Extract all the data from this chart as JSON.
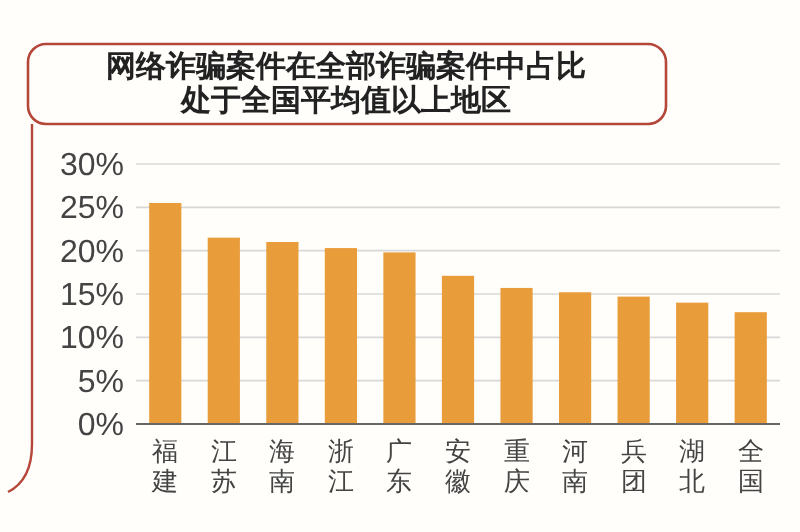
{
  "chart_data": {
    "type": "bar",
    "title": "网络诈骗案件在全部诈骗案件中占比",
    "subtitle": "处于全国平均值以上地区",
    "categories": [
      "福建",
      "江苏",
      "海南",
      "浙江",
      "广东",
      "安徽",
      "重庆",
      "河南",
      "兵团",
      "湖北",
      "全国"
    ],
    "values": [
      25.5,
      21.5,
      21.0,
      20.3,
      19.8,
      17.1,
      15.7,
      15.2,
      14.7,
      14.0,
      12.9
    ],
    "color": "#e89c3a",
    "ylim": [
      0,
      30
    ],
    "yticks": [
      {
        "value": 0,
        "label": "0%"
      },
      {
        "value": 5,
        "label": "5%"
      },
      {
        "value": 10,
        "label": "10%"
      },
      {
        "value": 15,
        "label": "15%"
      },
      {
        "value": 20,
        "label": "20%"
      },
      {
        "value": 25,
        "label": "25%"
      },
      {
        "value": 30,
        "label": "30%"
      }
    ],
    "grid": "y"
  }
}
